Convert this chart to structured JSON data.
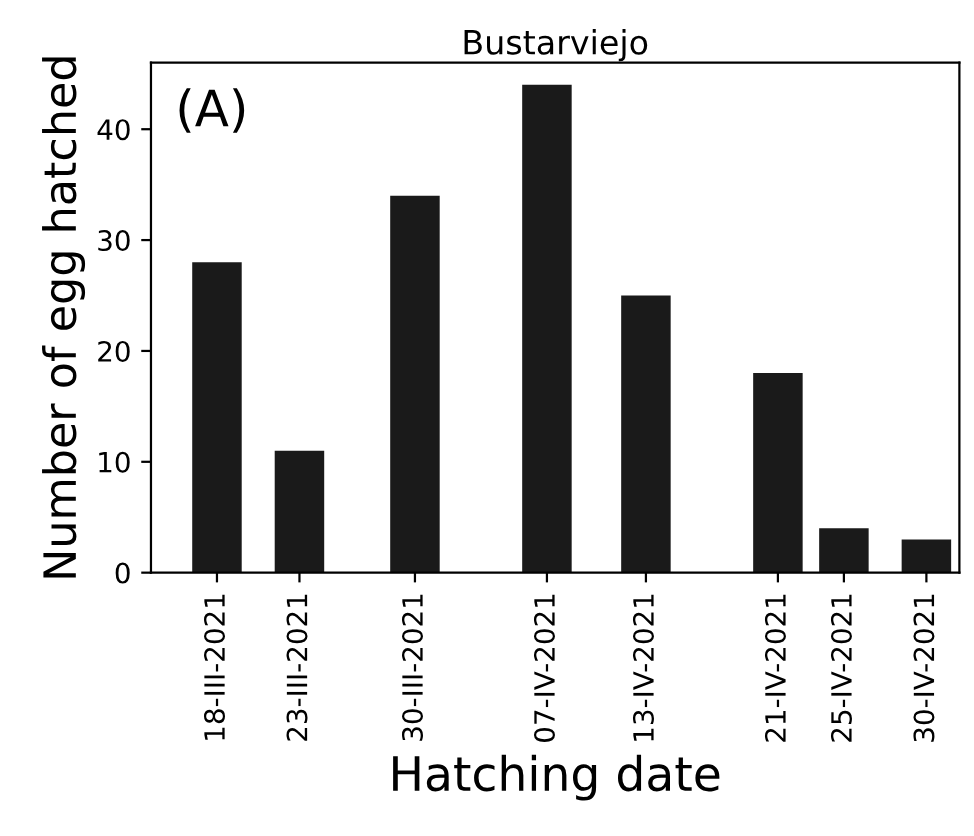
{
  "chart_data": {
    "type": "bar",
    "title": "Bustarviejo",
    "xlabel": "Hatching date",
    "ylabel": "Number of egg hatched",
    "annotations": [
      "(A)"
    ],
    "x": [
      "2021-03-18",
      "2021-03-23",
      "2021-03-30",
      "2021-04-07",
      "2021-04-13",
      "2021-04-21",
      "2021-04-25",
      "2021-04-30"
    ],
    "values": [
      28,
      11,
      34,
      44,
      25,
      18,
      4,
      3
    ],
    "color": "#1a1a1a",
    "xlim": [
      "2021-03-14",
      "2021-05-02"
    ],
    "xticks": [
      {
        "value": "2021-03-18",
        "label": "18-III-2021"
      },
      {
        "value": "2021-03-23",
        "label": "23-III-2021"
      },
      {
        "value": "2021-03-30",
        "label": "30-III-2021"
      },
      {
        "value": "2021-04-07",
        "label": "07-IV-2021"
      },
      {
        "value": "2021-04-13",
        "label": "13-IV-2021"
      },
      {
        "value": "2021-04-21",
        "label": "21-IV-2021"
      },
      {
        "value": "2021-04-25",
        "label": "25-IV-2021"
      },
      {
        "value": "2021-04-30",
        "label": "30-IV-2021"
      }
    ],
    "ylim": [
      0,
      46
    ],
    "yticks": [
      0,
      10,
      20,
      30,
      40
    ],
    "grid": false,
    "legend": false
  }
}
